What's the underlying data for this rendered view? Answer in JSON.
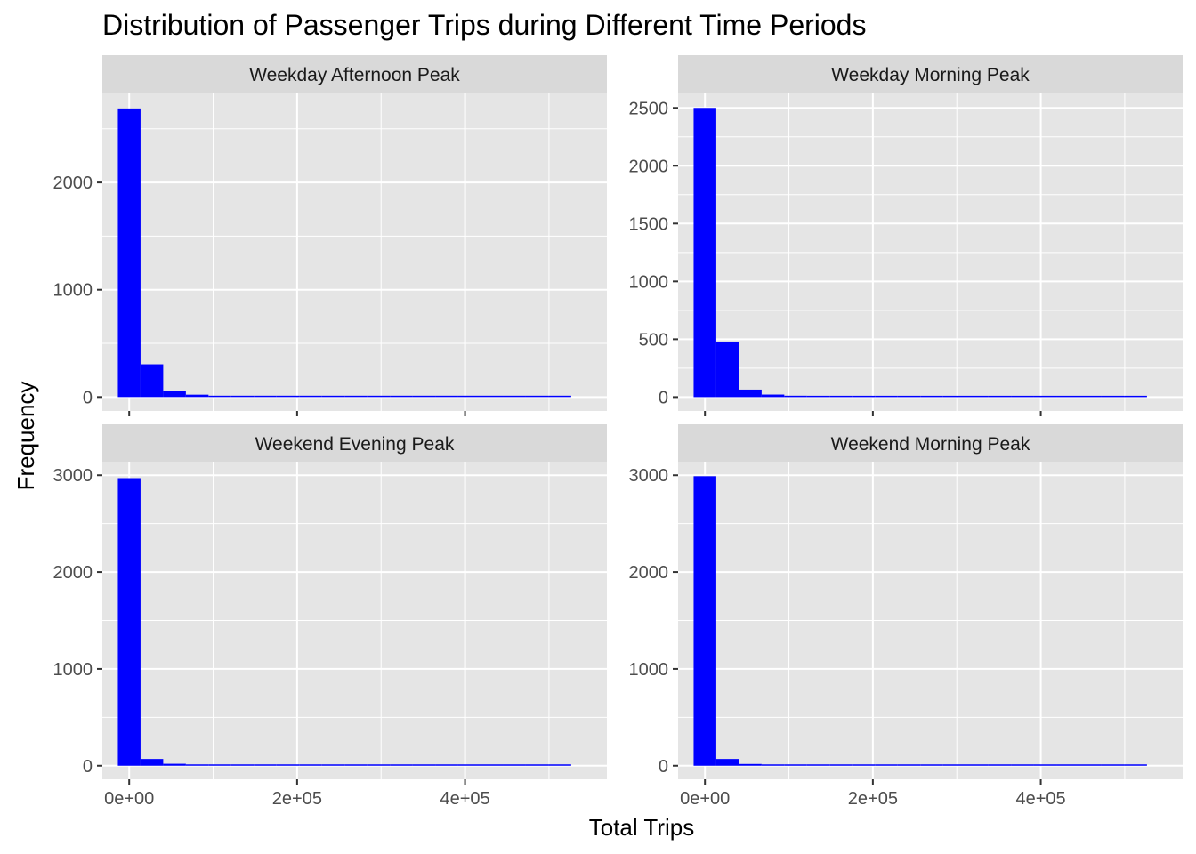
{
  "chart_data": {
    "type": "bar",
    "title": "Distribution of Passenger Trips during Different Time Periods",
    "xlabel": "Total Trips",
    "ylabel": "Frequency",
    "bar_color": "#0000FF",
    "panel_bg": "#E5E5E5",
    "strip_bg": "#D9D9D9",
    "grid_color": "#FFFFFF",
    "bin_width": 27000,
    "xlim": [
      -32000,
      569000
    ],
    "x_ticks": [
      0,
      200000,
      400000
    ],
    "x_tick_labels": [
      "0e+00",
      "2e+05",
      "4e+05"
    ],
    "panels": [
      {
        "strip": "Weekday Afternoon Peak",
        "ylim": [
          -130,
          2830
        ],
        "y_ticks": [
          0,
          1000,
          2000
        ],
        "y_tick_labels": [
          "0",
          "1000",
          "2000"
        ],
        "bin_centers": [
          0,
          27000,
          54000,
          81000,
          108000,
          135000,
          162000,
          189000,
          216000,
          243000,
          270000,
          297000,
          324000,
          351000,
          378000,
          405000,
          432000,
          459000,
          486000,
          513000
        ],
        "values": [
          2690,
          305,
          55,
          22,
          12,
          8,
          6,
          5,
          4,
          3,
          3,
          2,
          2,
          2,
          2,
          1,
          2,
          1,
          1,
          1
        ]
      },
      {
        "strip": "Weekday Morning Peak",
        "ylim": [
          -120,
          2625
        ],
        "y_ticks": [
          0,
          500,
          1000,
          1500,
          2000,
          2500
        ],
        "y_tick_labels": [
          "0",
          "500",
          "1000",
          "1500",
          "2000",
          "2500"
        ],
        "bin_centers": [
          0,
          27000,
          54000,
          81000,
          108000,
          135000,
          162000,
          189000,
          216000,
          243000,
          270000,
          297000,
          324000,
          351000,
          378000,
          405000,
          432000,
          459000,
          486000,
          513000
        ],
        "values": [
          2500,
          480,
          65,
          22,
          12,
          8,
          6,
          5,
          4,
          3,
          3,
          2,
          2,
          2,
          2,
          1,
          2,
          1,
          1,
          1
        ]
      },
      {
        "strip": "Weekend Evening Peak",
        "ylim": [
          -140,
          3140
        ],
        "y_ticks": [
          0,
          1000,
          2000,
          3000
        ],
        "y_tick_labels": [
          "0",
          "1000",
          "2000",
          "3000"
        ],
        "bin_centers": [
          0,
          27000,
          54000,
          81000,
          108000,
          135000,
          162000,
          189000,
          216000,
          243000,
          270000,
          297000,
          324000,
          351000,
          378000,
          405000,
          432000,
          459000,
          486000,
          513000
        ],
        "values": [
          2970,
          70,
          20,
          10,
          7,
          5,
          4,
          3,
          3,
          2,
          2,
          2,
          2,
          1,
          1,
          1,
          1,
          1,
          1,
          1
        ]
      },
      {
        "strip": "Weekend Morning Peak",
        "ylim": [
          -140,
          3140
        ],
        "y_ticks": [
          0,
          1000,
          2000,
          3000
        ],
        "y_tick_labels": [
          "0",
          "1000",
          "2000",
          "3000"
        ],
        "bin_centers": [
          0,
          27000,
          54000,
          81000,
          108000,
          135000,
          162000,
          189000,
          216000,
          243000,
          270000,
          297000,
          324000,
          351000,
          378000,
          405000,
          432000,
          459000,
          486000,
          513000
        ],
        "values": [
          2990,
          70,
          18,
          9,
          6,
          5,
          4,
          3,
          3,
          2,
          2,
          2,
          2,
          1,
          1,
          1,
          1,
          1,
          1,
          1
        ]
      }
    ]
  }
}
